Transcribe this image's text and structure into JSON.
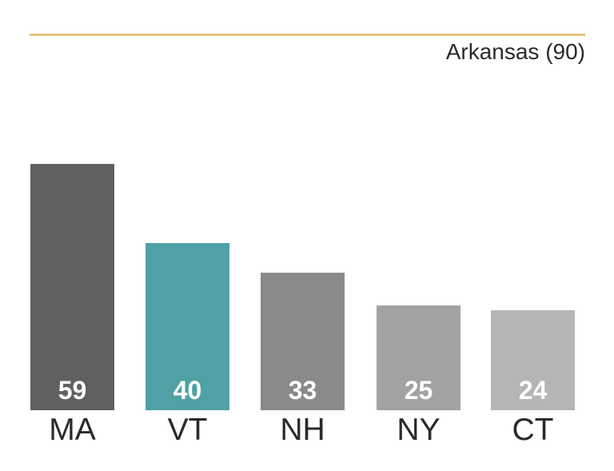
{
  "chart_data": {
    "type": "bar",
    "categories": [
      "MA",
      "VT",
      "NH",
      "NY",
      "CT"
    ],
    "values": [
      59,
      40,
      33,
      25,
      24
    ],
    "bar_colors": [
      "#606063",
      "#4fa1a5",
      "#8a8a8c",
      "#a2a2a4",
      "#b5b5b7"
    ],
    "value_label_color": "#ffffff",
    "category_label_color": "#2a2a2d",
    "reference_line": {
      "label": "Arkansas (90)",
      "value": 90,
      "color": "#e6c180",
      "label_color": "#2a2a2d"
    },
    "title": "",
    "xlabel": "",
    "ylabel": "",
    "ylim": [
      0,
      90
    ],
    "grid": false,
    "legend": false,
    "background": "#ffffff"
  }
}
